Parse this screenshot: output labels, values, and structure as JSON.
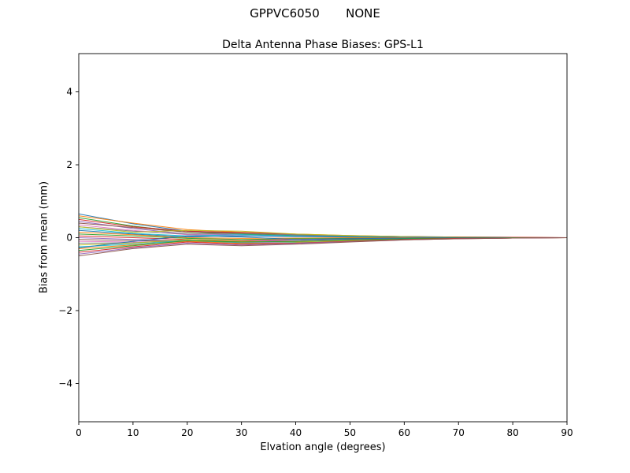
{
  "chart_data": {
    "type": "line",
    "title": "GPPVC6050       NONE",
    "subtitle": "Delta Antenna Phase Biases: GPS-L1",
    "xlabel": "Elvation angle (degrees)",
    "ylabel": "Bias from mean (mm)",
    "xlim": [
      0,
      90
    ],
    "ylim": [
      -5.05,
      5.05
    ],
    "xticks": [
      0,
      10,
      20,
      30,
      40,
      50,
      60,
      70,
      80,
      90
    ],
    "xtick_labels": [
      "0",
      "10",
      "20",
      "30",
      "40",
      "50",
      "60",
      "70",
      "80",
      "90"
    ],
    "yticks": [
      -4,
      -2,
      0,
      2,
      4
    ],
    "ytick_labels": [
      "−4",
      "−2",
      "0",
      "2",
      "4"
    ],
    "grid": false,
    "legend": "none",
    "axis_color": "#000000",
    "line_width": 1,
    "palette": [
      "#1f77b4",
      "#ff7f0e",
      "#2ca02c",
      "#d62728",
      "#9467bd",
      "#8c564b",
      "#e377c2",
      "#7f7f7f",
      "#bcbd22",
      "#17becf"
    ],
    "x": [
      0,
      10,
      20,
      30,
      40,
      50,
      60,
      70,
      80,
      90
    ],
    "series": [
      {
        "values": [
          0.65,
          0.38,
          0.18,
          0.12,
          0.08,
          0.05,
          0.03,
          0.02,
          0.01,
          0.0
        ]
      },
      {
        "values": [
          0.6,
          0.4,
          0.22,
          0.15,
          0.1,
          0.06,
          0.03,
          0.01,
          0.01,
          0.0
        ]
      },
      {
        "values": [
          0.55,
          0.32,
          0.15,
          0.1,
          0.06,
          0.04,
          0.02,
          0.01,
          0.0,
          0.0
        ]
      },
      {
        "values": [
          0.5,
          0.3,
          0.18,
          0.14,
          0.09,
          0.05,
          0.03,
          0.02,
          0.01,
          0.0
        ]
      },
      {
        "values": [
          0.45,
          0.25,
          0.1,
          0.08,
          0.05,
          0.03,
          0.02,
          0.01,
          0.0,
          0.0
        ]
      },
      {
        "values": [
          0.4,
          0.28,
          0.15,
          0.12,
          0.08,
          0.04,
          0.02,
          0.01,
          0.0,
          0.0
        ]
      },
      {
        "values": [
          0.35,
          0.2,
          0.08,
          0.05,
          0.03,
          0.02,
          0.01,
          0.0,
          0.0,
          0.0
        ]
      },
      {
        "values": [
          0.3,
          0.18,
          0.1,
          0.12,
          0.08,
          0.05,
          0.02,
          0.01,
          0.0,
          0.0
        ]
      },
      {
        "values": [
          0.3,
          0.15,
          0.2,
          0.18,
          0.1,
          0.06,
          0.03,
          0.01,
          0.0,
          0.0
        ]
      },
      {
        "values": [
          0.25,
          0.12,
          0.05,
          0.08,
          0.05,
          0.03,
          0.01,
          0.0,
          0.0,
          0.0
        ]
      },
      {
        "values": [
          0.2,
          0.1,
          0.02,
          0.05,
          0.03,
          0.02,
          0.01,
          0.0,
          0.0,
          0.0
        ]
      },
      {
        "values": [
          0.15,
          0.08,
          0.0,
          -0.02,
          -0.01,
          0.0,
          0.0,
          0.0,
          0.0,
          0.0
        ]
      },
      {
        "values": [
          0.1,
          0.05,
          -0.02,
          -0.05,
          -0.03,
          -0.02,
          -0.01,
          0.0,
          0.0,
          0.0
        ]
      },
      {
        "values": [
          0.05,
          0.0,
          -0.05,
          -0.08,
          -0.05,
          -0.03,
          -0.01,
          0.0,
          0.0,
          0.0
        ]
      },
      {
        "values": [
          0.0,
          -0.05,
          -0.08,
          -0.1,
          -0.08,
          -0.05,
          -0.02,
          -0.01,
          0.0,
          0.0
        ]
      },
      {
        "values": [
          -0.05,
          -0.08,
          -0.1,
          -0.12,
          -0.1,
          -0.06,
          -0.03,
          -0.01,
          0.0,
          0.0
        ]
      },
      {
        "values": [
          -0.1,
          -0.12,
          -0.1,
          -0.14,
          -0.12,
          -0.08,
          -0.04,
          -0.02,
          -0.01,
          0.0
        ]
      },
      {
        "values": [
          -0.15,
          -0.14,
          -0.08,
          -0.12,
          -0.1,
          -0.07,
          -0.03,
          -0.01,
          0.0,
          0.0
        ]
      },
      {
        "values": [
          -0.2,
          -0.15,
          -0.05,
          -0.1,
          -0.12,
          -0.08,
          -0.05,
          -0.02,
          -0.01,
          0.0
        ]
      },
      {
        "values": [
          -0.25,
          -0.18,
          -0.08,
          -0.15,
          -0.14,
          -0.1,
          -0.05,
          -0.02,
          -0.01,
          0.0
        ]
      },
      {
        "values": [
          -0.28,
          -0.1,
          0.05,
          0.02,
          -0.05,
          -0.03,
          -0.01,
          0.0,
          0.0,
          0.0
        ]
      },
      {
        "values": [
          -0.3,
          -0.2,
          -0.1,
          -0.16,
          -0.15,
          -0.1,
          -0.06,
          -0.03,
          -0.01,
          0.0
        ]
      },
      {
        "values": [
          -0.35,
          -0.22,
          -0.08,
          -0.12,
          -0.1,
          -0.06,
          -0.03,
          -0.01,
          0.0,
          0.0
        ]
      },
      {
        "values": [
          -0.4,
          -0.25,
          -0.12,
          -0.18,
          -0.15,
          -0.1,
          -0.05,
          -0.02,
          -0.01,
          0.0
        ]
      },
      {
        "values": [
          -0.45,
          -0.28,
          -0.15,
          -0.2,
          -0.16,
          -0.11,
          -0.06,
          -0.03,
          -0.01,
          0.0
        ]
      },
      {
        "values": [
          -0.5,
          -0.3,
          -0.18,
          -0.22,
          -0.18,
          -0.12,
          -0.06,
          -0.03,
          -0.01,
          0.0
        ]
      }
    ]
  }
}
